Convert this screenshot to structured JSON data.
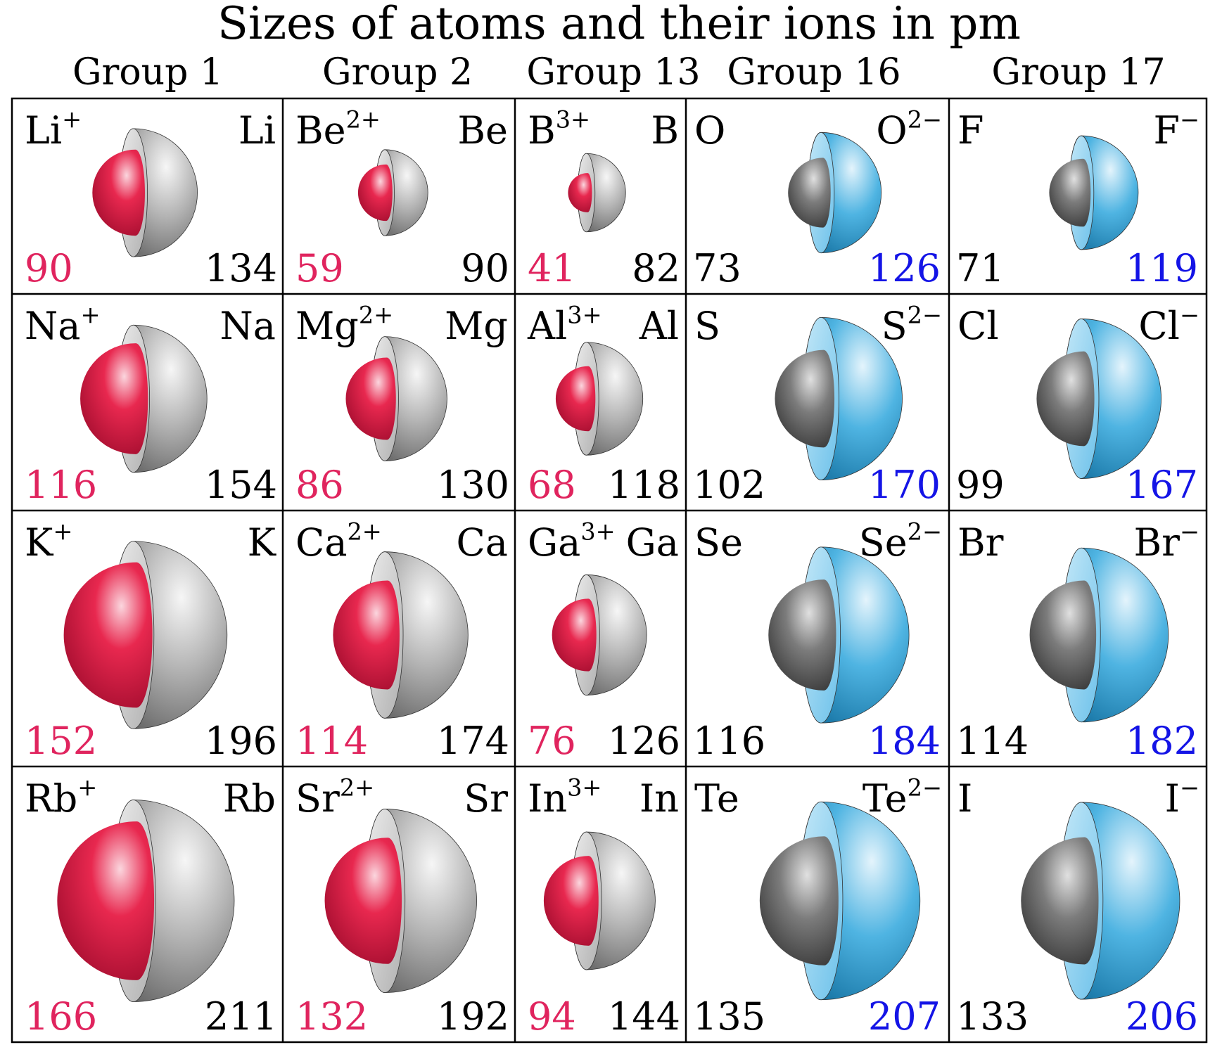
{
  "title": "Sizes of atoms and their ions in pm",
  "groups": [
    "Group 1",
    "Group 2",
    "Group 13",
    "Group 16",
    "Group 17"
  ],
  "colors": {
    "cation": "#dc1441",
    "anion_core": "#3fa6d8",
    "neutral": "#9a9a9a",
    "cation_label": "#e0245e",
    "anion_label": "#1414e6",
    "text": "#000000"
  },
  "rows": [
    [
      {
        "ion": "Li",
        "charge": "+",
        "atom": "Li",
        "ion_radius": 90,
        "atom_radius": 134,
        "kind": "cation"
      },
      {
        "ion": "Be",
        "charge": "2+",
        "atom": "Be",
        "ion_radius": 59,
        "atom_radius": 90,
        "kind": "cation"
      },
      {
        "ion": "B",
        "charge": "3+",
        "atom": "B",
        "ion_radius": 41,
        "atom_radius": 82,
        "kind": "cation"
      },
      {
        "atom": "O",
        "ion": "O",
        "charge": "2−",
        "atom_radius": 73,
        "ion_radius": 126,
        "kind": "anion"
      },
      {
        "atom": "F",
        "ion": "F",
        "charge": "−",
        "atom_radius": 71,
        "ion_radius": 119,
        "kind": "anion"
      }
    ],
    [
      {
        "ion": "Na",
        "charge": "+",
        "atom": "Na",
        "ion_radius": 116,
        "atom_radius": 154,
        "kind": "cation"
      },
      {
        "ion": "Mg",
        "charge": "2+",
        "atom": "Mg",
        "ion_radius": 86,
        "atom_radius": 130,
        "kind": "cation"
      },
      {
        "ion": "Al",
        "charge": "3+",
        "atom": "Al",
        "ion_radius": 68,
        "atom_radius": 118,
        "kind": "cation"
      },
      {
        "atom": "S",
        "ion": "S",
        "charge": "2−",
        "atom_radius": 102,
        "ion_radius": 170,
        "kind": "anion"
      },
      {
        "atom": "Cl",
        "ion": "Cl",
        "charge": "−",
        "atom_radius": 99,
        "ion_radius": 167,
        "kind": "anion"
      }
    ],
    [
      {
        "ion": "K",
        "charge": "+",
        "atom": "K",
        "ion_radius": 152,
        "atom_radius": 196,
        "kind": "cation"
      },
      {
        "ion": "Ca",
        "charge": "2+",
        "atom": "Ca",
        "ion_radius": 114,
        "atom_radius": 174,
        "kind": "cation"
      },
      {
        "ion": "Ga",
        "charge": "3+",
        "atom": "Ga",
        "ion_radius": 76,
        "atom_radius": 126,
        "kind": "cation"
      },
      {
        "atom": "Se",
        "ion": "Se",
        "charge": "2−",
        "atom_radius": 116,
        "ion_radius": 184,
        "kind": "anion"
      },
      {
        "atom": "Br",
        "ion": "Br",
        "charge": "−",
        "atom_radius": 114,
        "ion_radius": 182,
        "kind": "anion"
      }
    ],
    [
      {
        "ion": "Rb",
        "charge": "+",
        "atom": "Rb",
        "ion_radius": 166,
        "atom_radius": 211,
        "kind": "cation"
      },
      {
        "ion": "Sr",
        "charge": "2+",
        "atom": "Sr",
        "ion_radius": 132,
        "atom_radius": 192,
        "kind": "cation"
      },
      {
        "ion": "In",
        "charge": "3+",
        "atom": "In",
        "ion_radius": 94,
        "atom_radius": 144,
        "kind": "cation"
      },
      {
        "atom": "Te",
        "ion": "Te",
        "charge": "2−",
        "atom_radius": 135,
        "ion_radius": 207,
        "kind": "anion"
      },
      {
        "atom": "I",
        "ion": "I",
        "charge": "−",
        "atom_radius": 133,
        "ion_radius": 206,
        "kind": "anion"
      }
    ]
  ]
}
